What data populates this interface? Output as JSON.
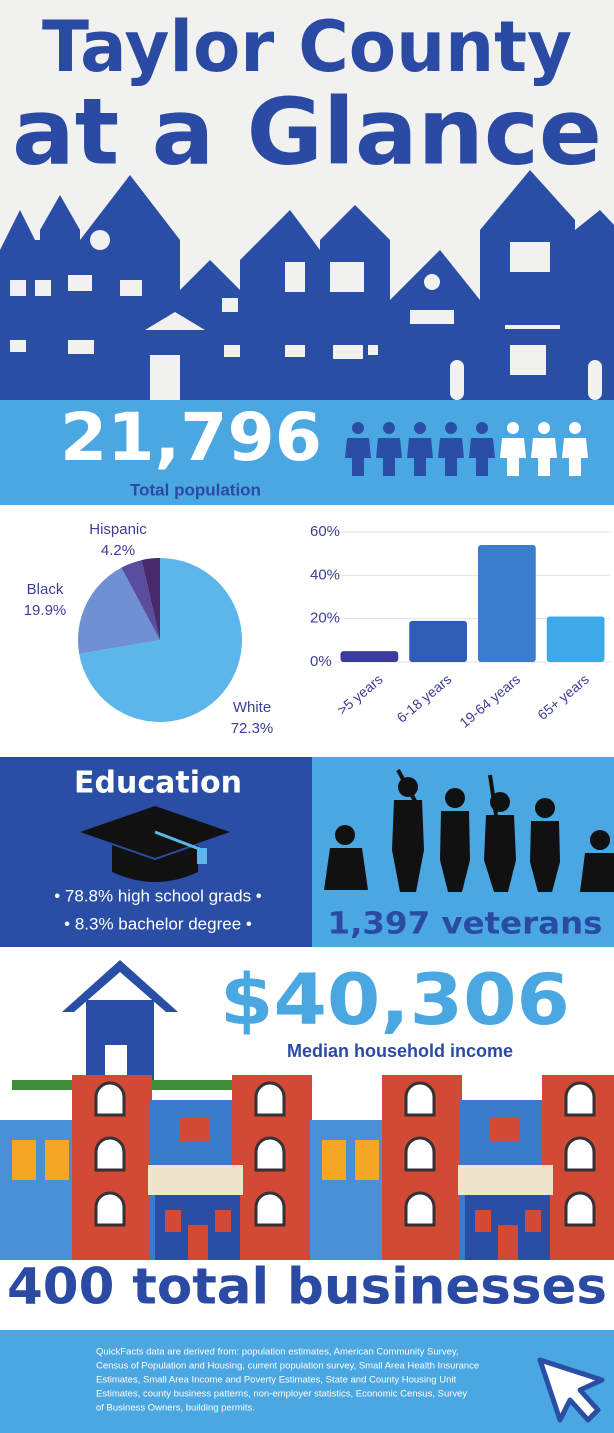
{
  "header": {
    "title_line1": "Taylor County",
    "title_line2": "at a Glance"
  },
  "population": {
    "value": "21,796",
    "label": "Total population"
  },
  "chart_data": [
    {
      "type": "pie",
      "categories": [
        "White",
        "Black",
        "Hispanic",
        null
      ],
      "values": [
        72.3,
        19.9,
        4.2,
        3.6
      ],
      "value_labels": [
        "72.3%",
        "19.9%",
        "4.2%",
        null
      ],
      "colors": [
        "#5cb6ea",
        "#6f90d2",
        "#5b4d9e",
        "#472a6b"
      ]
    },
    {
      "type": "bar",
      "categories": [
        ">5 years",
        "6-18 years",
        "19-64 years",
        "65+ years"
      ],
      "values": [
        5,
        19,
        54,
        21
      ],
      "colors": [
        "#3b3c9c",
        "#2f5db6",
        "#3a7dcd",
        "#3fa8e8"
      ],
      "ylim": [
        0,
        60
      ],
      "yticks": [
        {
          "value": 0,
          "label": "0%"
        },
        {
          "value": 20,
          "label": "20%"
        },
        {
          "value": 40,
          "label": "40%"
        },
        {
          "value": 60,
          "label": "60%"
        }
      ],
      "grid": true
    }
  ],
  "education": {
    "title": "Education",
    "bullets": [
      "• 78.8% high school grads •",
      "• 8.3% bachelor degree •"
    ]
  },
  "veterans": {
    "label": "1,397 veterans"
  },
  "income": {
    "value": "$40,306",
    "label": "Median household income"
  },
  "businesses": {
    "label": "400 total businesses"
  },
  "footer": {
    "lines": [
      "QuickFacts data are derived from: population estimates, American Community Survey,",
      "Census of Population and Housing, current population survey, Small Area Health Insurance",
      "Estimates, Small Area Income and Poverty Estimates, State and County Housing Unit",
      "Estimates, county business patterns, non-employer statistics, Economic Census, Survey",
      "of Business Owners, building permits."
    ]
  }
}
